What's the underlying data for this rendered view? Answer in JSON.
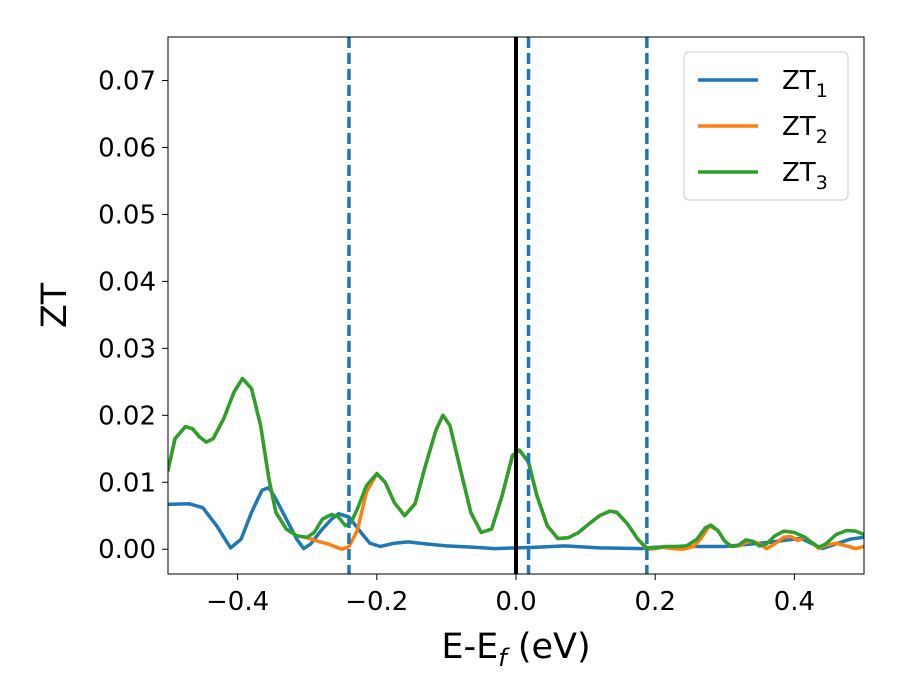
{
  "chart_data": {
    "type": "line",
    "xlabel": {
      "main": "E-E",
      "sub": "f",
      "tail": " (eV)"
    },
    "ylabel": "ZT",
    "xlim": [
      -0.5,
      0.5
    ],
    "ylim": [
      -0.0037,
      0.0765
    ],
    "xticks": [
      -0.4,
      -0.2,
      0.0,
      0.2,
      0.4
    ],
    "xtick_labels": [
      "−0.4",
      "−0.2",
      "0.0",
      "0.2",
      "0.4"
    ],
    "yticks": [
      0.0,
      0.01,
      0.02,
      0.03,
      0.04,
      0.05,
      0.06,
      0.07
    ],
    "ytick_labels": [
      "0.00",
      "0.01",
      "0.02",
      "0.03",
      "0.04",
      "0.05",
      "0.06",
      "0.07"
    ],
    "grid": false,
    "legend_position": "top-right",
    "solid_vline": {
      "x": 0.0,
      "color": "#000000"
    },
    "dashed_vlines": [
      {
        "x": -0.24,
        "color": "#1f77b4"
      },
      {
        "x": 0.018,
        "color": "#1f77b4"
      },
      {
        "x": 0.188,
        "color": "#1f77b4"
      }
    ],
    "series": [
      {
        "name": "ZT",
        "sub": "1",
        "color": "#1f77b4",
        "points": [
          [
            -0.5,
            0.0067
          ],
          [
            -0.47,
            0.0068
          ],
          [
            -0.45,
            0.0062
          ],
          [
            -0.43,
            0.0035
          ],
          [
            -0.41,
            0.0002
          ],
          [
            -0.395,
            0.0015
          ],
          [
            -0.38,
            0.0055
          ],
          [
            -0.365,
            0.0088
          ],
          [
            -0.355,
            0.0092
          ],
          [
            -0.345,
            0.0075
          ],
          [
            -0.33,
            0.0045
          ],
          [
            -0.315,
            0.0015
          ],
          [
            -0.305,
            0.0001
          ],
          [
            -0.295,
            0.0008
          ],
          [
            -0.28,
            0.0028
          ],
          [
            -0.265,
            0.0045
          ],
          [
            -0.255,
            0.0053
          ],
          [
            -0.24,
            0.0048
          ],
          [
            -0.225,
            0.0028
          ],
          [
            -0.21,
            0.0009
          ],
          [
            -0.195,
            0.0004
          ],
          [
            -0.175,
            0.0009
          ],
          [
            -0.155,
            0.0011
          ],
          [
            -0.13,
            0.0008
          ],
          [
            -0.1,
            0.0005
          ],
          [
            -0.06,
            0.0003
          ],
          [
            -0.03,
            0.0001
          ],
          [
            0.0,
            0.0002
          ],
          [
            0.03,
            0.0003
          ],
          [
            0.07,
            0.0005
          ],
          [
            0.12,
            0.0002
          ],
          [
            0.18,
            0.0001
          ],
          [
            0.2,
            0.0003
          ],
          [
            0.25,
            0.0004
          ],
          [
            0.3,
            0.0004
          ],
          [
            0.34,
            0.0008
          ],
          [
            0.37,
            0.0011
          ],
          [
            0.39,
            0.0014
          ],
          [
            0.41,
            0.0016
          ],
          [
            0.43,
            0.0006
          ],
          [
            0.44,
            0.0001
          ],
          [
            0.46,
            0.0008
          ],
          [
            0.48,
            0.0015
          ],
          [
            0.5,
            0.0018
          ]
        ]
      },
      {
        "name": "ZT",
        "sub": "2",
        "color": "#ff7f0e",
        "points": [
          [
            -0.5,
            0.0118
          ],
          [
            -0.49,
            0.0165
          ],
          [
            -0.475,
            0.0183
          ],
          [
            -0.465,
            0.018
          ],
          [
            -0.455,
            0.0168
          ],
          [
            -0.445,
            0.016
          ],
          [
            -0.435,
            0.0165
          ],
          [
            -0.42,
            0.0195
          ],
          [
            -0.405,
            0.0235
          ],
          [
            -0.393,
            0.0255
          ],
          [
            -0.38,
            0.024
          ],
          [
            -0.367,
            0.0185
          ],
          [
            -0.355,
            0.0105
          ],
          [
            -0.345,
            0.0055
          ],
          [
            -0.33,
            0.003
          ],
          [
            -0.315,
            0.002
          ],
          [
            -0.3,
            0.0017
          ],
          [
            -0.285,
            0.0012
          ],
          [
            -0.27,
            0.0008
          ],
          [
            -0.258,
            0.0003
          ],
          [
            -0.25,
            0.0
          ],
          [
            -0.24,
            0.0004
          ],
          [
            -0.228,
            0.0028
          ],
          [
            -0.215,
            0.0085
          ],
          [
            -0.2,
            0.0113
          ],
          [
            -0.188,
            0.01
          ],
          [
            -0.175,
            0.007
          ],
          [
            -0.16,
            0.005
          ],
          [
            -0.145,
            0.0068
          ],
          [
            -0.13,
            0.0125
          ],
          [
            -0.115,
            0.0178
          ],
          [
            -0.105,
            0.02
          ],
          [
            -0.095,
            0.0185
          ],
          [
            -0.08,
            0.012
          ],
          [
            -0.065,
            0.0055
          ],
          [
            -0.05,
            0.0025
          ],
          [
            -0.035,
            0.003
          ],
          [
            -0.02,
            0.008
          ],
          [
            -0.005,
            0.014
          ],
          [
            0.005,
            0.0148
          ],
          [
            0.018,
            0.013
          ],
          [
            0.03,
            0.008
          ],
          [
            0.045,
            0.0035
          ],
          [
            0.06,
            0.0016
          ],
          [
            0.075,
            0.0017
          ],
          [
            0.09,
            0.0025
          ],
          [
            0.105,
            0.0038
          ],
          [
            0.12,
            0.005
          ],
          [
            0.135,
            0.0057
          ],
          [
            0.145,
            0.0055
          ],
          [
            0.16,
            0.0038
          ],
          [
            0.175,
            0.0015
          ],
          [
            0.188,
            0.0
          ],
          [
            0.2,
            0.0001
          ],
          [
            0.21,
            0.0003
          ],
          [
            0.225,
            0.0001
          ],
          [
            0.24,
            0.0
          ],
          [
            0.255,
            0.0004
          ],
          [
            0.265,
            0.0015
          ],
          [
            0.278,
            0.0035
          ],
          [
            0.29,
            0.0028
          ],
          [
            0.3,
            0.0012
          ],
          [
            0.31,
            0.0004
          ],
          [
            0.32,
            0.0005
          ],
          [
            0.33,
            0.001
          ],
          [
            0.34,
            0.0012
          ],
          [
            0.35,
            0.0008
          ],
          [
            0.36,
            0.0001
          ],
          [
            0.372,
            0.0008
          ],
          [
            0.385,
            0.0018
          ],
          [
            0.395,
            0.0019
          ],
          [
            0.405,
            0.0013
          ],
          [
            0.415,
            0.0018
          ],
          [
            0.425,
            0.001
          ],
          [
            0.435,
            0.0001
          ],
          [
            0.445,
            0.0006
          ],
          [
            0.46,
            0.0009
          ],
          [
            0.475,
            0.0005
          ],
          [
            0.488,
            0.0001
          ],
          [
            0.5,
            0.0004
          ]
        ]
      },
      {
        "name": "ZT",
        "sub": "3",
        "color": "#2ca02c",
        "points": [
          [
            -0.5,
            0.0118
          ],
          [
            -0.49,
            0.0165
          ],
          [
            -0.475,
            0.0183
          ],
          [
            -0.465,
            0.018
          ],
          [
            -0.455,
            0.0168
          ],
          [
            -0.445,
            0.016
          ],
          [
            -0.435,
            0.0165
          ],
          [
            -0.42,
            0.0195
          ],
          [
            -0.405,
            0.0235
          ],
          [
            -0.393,
            0.0255
          ],
          [
            -0.38,
            0.024
          ],
          [
            -0.367,
            0.0185
          ],
          [
            -0.355,
            0.0105
          ],
          [
            -0.345,
            0.0055
          ],
          [
            -0.33,
            0.003
          ],
          [
            -0.315,
            0.002
          ],
          [
            -0.3,
            0.0018
          ],
          [
            -0.29,
            0.0025
          ],
          [
            -0.278,
            0.0045
          ],
          [
            -0.265,
            0.0052
          ],
          [
            -0.255,
            0.0048
          ],
          [
            -0.245,
            0.0035
          ],
          [
            -0.237,
            0.004
          ],
          [
            -0.228,
            0.006
          ],
          [
            -0.215,
            0.0095
          ],
          [
            -0.2,
            0.0113
          ],
          [
            -0.188,
            0.01
          ],
          [
            -0.175,
            0.007
          ],
          [
            -0.16,
            0.005
          ],
          [
            -0.145,
            0.0068
          ],
          [
            -0.13,
            0.0125
          ],
          [
            -0.115,
            0.0178
          ],
          [
            -0.105,
            0.02
          ],
          [
            -0.095,
            0.0185
          ],
          [
            -0.08,
            0.012
          ],
          [
            -0.065,
            0.0055
          ],
          [
            -0.05,
            0.0025
          ],
          [
            -0.035,
            0.003
          ],
          [
            -0.02,
            0.008
          ],
          [
            -0.005,
            0.014
          ],
          [
            0.005,
            0.0148
          ],
          [
            0.018,
            0.013
          ],
          [
            0.03,
            0.008
          ],
          [
            0.045,
            0.0035
          ],
          [
            0.06,
            0.0016
          ],
          [
            0.075,
            0.0017
          ],
          [
            0.09,
            0.0025
          ],
          [
            0.105,
            0.0038
          ],
          [
            0.12,
            0.005
          ],
          [
            0.135,
            0.0057
          ],
          [
            0.145,
            0.0055
          ],
          [
            0.16,
            0.0038
          ],
          [
            0.175,
            0.0015
          ],
          [
            0.188,
            0.0002
          ],
          [
            0.2,
            0.0002
          ],
          [
            0.215,
            0.0004
          ],
          [
            0.23,
            0.0004
          ],
          [
            0.245,
            0.0005
          ],
          [
            0.26,
            0.0015
          ],
          [
            0.272,
            0.0032
          ],
          [
            0.28,
            0.0036
          ],
          [
            0.29,
            0.0028
          ],
          [
            0.3,
            0.0012
          ],
          [
            0.31,
            0.0004
          ],
          [
            0.32,
            0.0006
          ],
          [
            0.33,
            0.0014
          ],
          [
            0.34,
            0.0012
          ],
          [
            0.35,
            0.0005
          ],
          [
            0.36,
            0.0008
          ],
          [
            0.372,
            0.002
          ],
          [
            0.385,
            0.0027
          ],
          [
            0.4,
            0.0025
          ],
          [
            0.415,
            0.0018
          ],
          [
            0.425,
            0.001
          ],
          [
            0.435,
            0.0003
          ],
          [
            0.445,
            0.0008
          ],
          [
            0.46,
            0.0022
          ],
          [
            0.475,
            0.0028
          ],
          [
            0.488,
            0.0027
          ],
          [
            0.5,
            0.0022
          ]
        ]
      }
    ]
  }
}
